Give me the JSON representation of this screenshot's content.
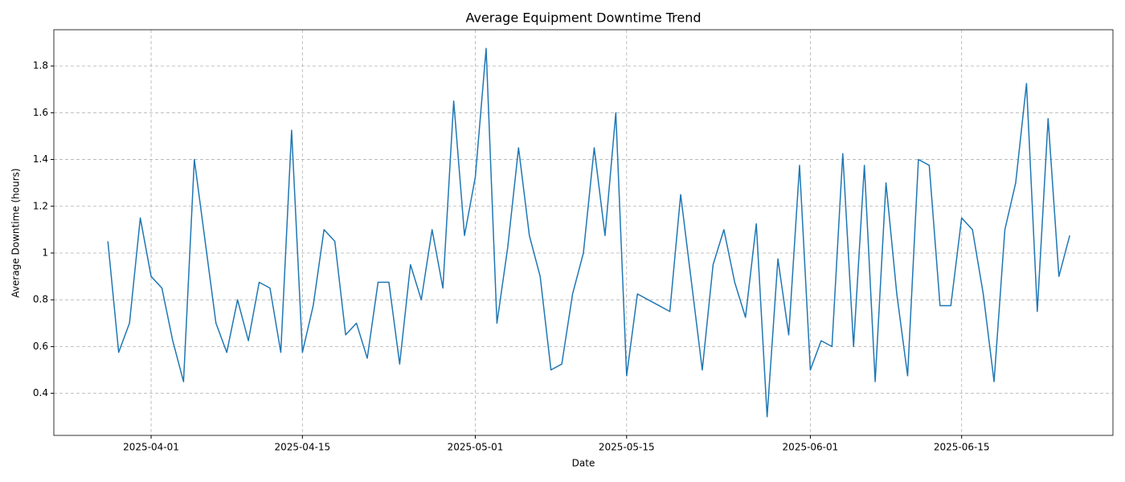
{
  "chart_data": {
    "type": "line",
    "title": "Average Equipment Downtime Trend",
    "x_label": "Date",
    "y_label": "Average Downtime (hours)",
    "color": "#1f77b4",
    "grid": true,
    "x": [
      "2025-03-28",
      "2025-03-29",
      "2025-03-30",
      "2025-03-31",
      "2025-04-01",
      "2025-04-02",
      "2025-04-03",
      "2025-04-04",
      "2025-04-05",
      "2025-04-06",
      "2025-04-07",
      "2025-04-08",
      "2025-04-09",
      "2025-04-10",
      "2025-04-11",
      "2025-04-12",
      "2025-04-13",
      "2025-04-14",
      "2025-04-15",
      "2025-04-16",
      "2025-04-17",
      "2025-04-18",
      "2025-04-19",
      "2025-04-20",
      "2025-04-21",
      "2025-04-22",
      "2025-04-23",
      "2025-04-24",
      "2025-04-25",
      "2025-04-26",
      "2025-04-27",
      "2025-04-28",
      "2025-04-29",
      "2025-04-30",
      "2025-05-01",
      "2025-05-02",
      "2025-05-03",
      "2025-05-04",
      "2025-05-05",
      "2025-05-06",
      "2025-05-07",
      "2025-05-08",
      "2025-05-09",
      "2025-05-10",
      "2025-05-11",
      "2025-05-12",
      "2025-05-13",
      "2025-05-14",
      "2025-05-15",
      "2025-05-16",
      "2025-05-17",
      "2025-05-18",
      "2025-05-19",
      "2025-05-20",
      "2025-05-21",
      "2025-05-22",
      "2025-05-23",
      "2025-05-24",
      "2025-05-25",
      "2025-05-26",
      "2025-05-27",
      "2025-05-28",
      "2025-05-29",
      "2025-05-30",
      "2025-05-31",
      "2025-06-01",
      "2025-06-02",
      "2025-06-03",
      "2025-06-04",
      "2025-06-05",
      "2025-06-06",
      "2025-06-07",
      "2025-06-08",
      "2025-06-09",
      "2025-06-10",
      "2025-06-11",
      "2025-06-12",
      "2025-06-13",
      "2025-06-14",
      "2025-06-15",
      "2025-06-16",
      "2025-06-17",
      "2025-06-18",
      "2025-06-19",
      "2025-06-20",
      "2025-06-21",
      "2025-06-22",
      "2025-06-23",
      "2025-06-24",
      "2025-06-25"
    ],
    "values": [
      1.05,
      0.575,
      0.7,
      1.15,
      0.9,
      0.85,
      0.625,
      0.45,
      1.4,
      1.05,
      0.7,
      0.575,
      0.8,
      0.625,
      0.875,
      0.85,
      0.575,
      1.525,
      0.575,
      0.775,
      1.1,
      1.05,
      0.65,
      0.7,
      0.55,
      0.875,
      0.875,
      0.525,
      0.95,
      0.8,
      1.1,
      0.85,
      1.65,
      1.075,
      1.325,
      1.875,
      0.7,
      1.025,
      1.45,
      1.075,
      0.9,
      0.5,
      0.525,
      0.825,
      1.0,
      1.45,
      1.075,
      1.6,
      0.475,
      0.825,
      0.8,
      0.775,
      0.75,
      1.25,
      0.875,
      0.5,
      0.95,
      1.1,
      0.875,
      0.725,
      1.125,
      0.3,
      0.975,
      0.65,
      1.375,
      0.5,
      0.625,
      0.6,
      1.425,
      0.6,
      1.375,
      0.45,
      1.3,
      0.825,
      0.475,
      1.4,
      1.375,
      0.775,
      0.775,
      1.15,
      1.1,
      0.825,
      0.45,
      1.1,
      1.3,
      1.725,
      0.75,
      1.575,
      0.9,
      1.075
    ],
    "xlim": [
      "2025-03-23",
      "2025-06-29"
    ],
    "xticks": [
      "2025-04-01",
      "2025-04-15",
      "2025-05-01",
      "2025-05-15",
      "2025-06-01",
      "2025-06-15"
    ],
    "ylim": [
      0.22,
      1.955
    ],
    "yticks": [
      0.4,
      0.6,
      0.8,
      1.0,
      1.2,
      1.4,
      1.6,
      1.8
    ]
  }
}
